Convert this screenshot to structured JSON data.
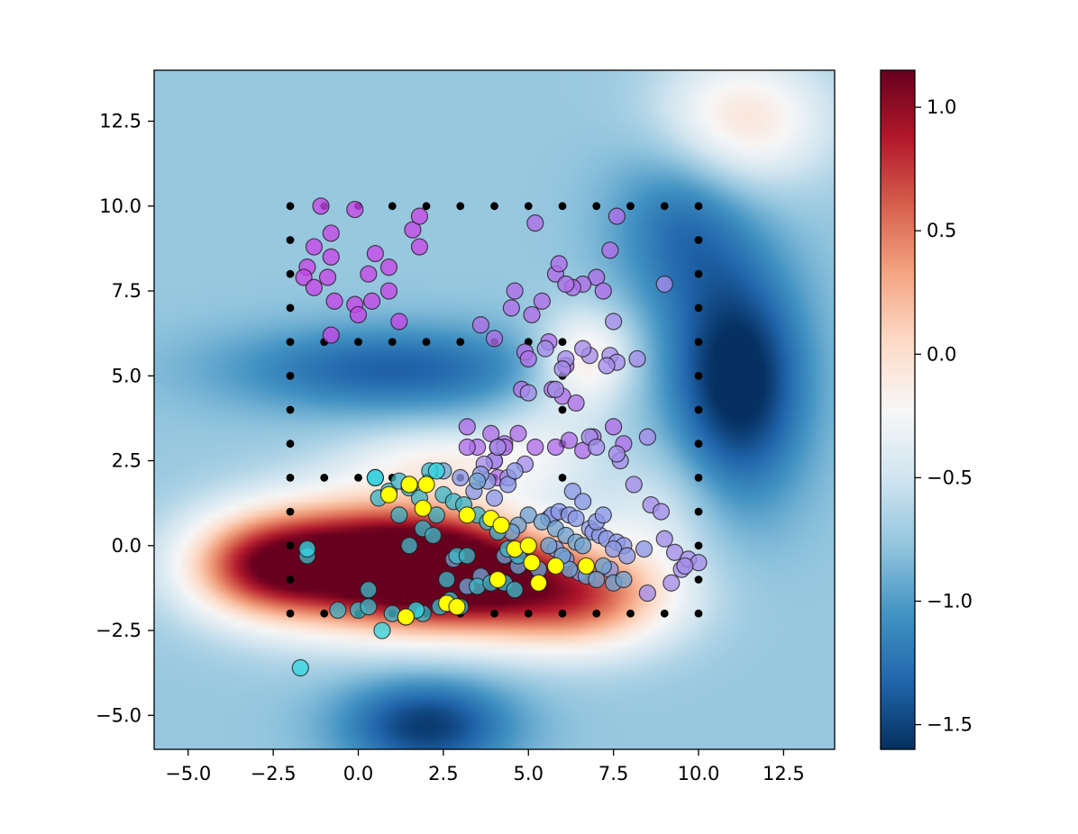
{
  "chart_data": {
    "type": "scatter",
    "title": "",
    "xlabel": "",
    "ylabel": "",
    "xlim": [
      -6,
      14
    ],
    "ylim": [
      -6,
      14
    ],
    "x_ticks": [
      -5.0,
      -2.5,
      0.0,
      2.5,
      5.0,
      7.5,
      10.0,
      12.5
    ],
    "y_ticks": [
      -5.0,
      -2.5,
      0.0,
      2.5,
      5.0,
      7.5,
      10.0,
      12.5
    ],
    "x_tick_labels": [
      "−5.0",
      "−2.5",
      "0.0",
      "2.5",
      "5.0",
      "7.5",
      "10.0",
      "12.5"
    ],
    "y_tick_labels": [
      "−5.0",
      "−2.5",
      "0.0",
      "2.5",
      "5.0",
      "7.5",
      "10.0",
      "12.5"
    ],
    "grid": false,
    "background": {
      "type": "heatmap",
      "colormap": "RdBu_r",
      "vmin": -1.6,
      "vmax": 1.15,
      "base_value": -0.75,
      "bumps": [
        {
          "x": 0.0,
          "y": -0.5,
          "amp": 2.0,
          "sx": 2.6,
          "sy": 1.3
        },
        {
          "x": 3.0,
          "y": -0.8,
          "amp": 1.4,
          "sx": 2.0,
          "sy": 1.2
        },
        {
          "x": 6.5,
          "y": -1.5,
          "amp": 1.3,
          "sx": 2.0,
          "sy": 1.1
        },
        {
          "x": -3.0,
          "y": -0.6,
          "amp": 0.9,
          "sx": 1.5,
          "sy": 1.0
        },
        {
          "x": 2.5,
          "y": 2.5,
          "amp": 0.5,
          "sx": 2.0,
          "sy": 0.7
        },
        {
          "x": 11.2,
          "y": 4.8,
          "amp": -0.95,
          "sx": 1.4,
          "sy": 2.4
        },
        {
          "x": 2.0,
          "y": -5.3,
          "amp": -0.8,
          "sx": 1.8,
          "sy": 1.0
        },
        {
          "x": 1.0,
          "y": 5.2,
          "amp": -0.6,
          "sx": 3.5,
          "sy": 0.9
        },
        {
          "x": 9.5,
          "y": 9.5,
          "amp": -0.5,
          "sx": 1.5,
          "sy": 2.0
        },
        {
          "x": 11.2,
          "y": 12.5,
          "amp": 0.75,
          "sx": 1.8,
          "sy": 1.4
        },
        {
          "x": 6.7,
          "y": 5.5,
          "amp": 0.75,
          "sx": 1.0,
          "sy": 1.0
        },
        {
          "x": 8.8,
          "y": 1.0,
          "amp": 0.3,
          "sx": 1.3,
          "sy": 1.3
        },
        {
          "x": 5.5,
          "y": 3.0,
          "amp": 0.3,
          "sx": 1.2,
          "sy": 1.2
        }
      ]
    },
    "series": [
      {
        "name": "grid-points",
        "color": "#000000",
        "marker": "dot",
        "x": [
          -2,
          -1,
          0,
          1,
          2,
          3,
          4,
          5,
          6,
          7,
          8,
          9,
          10,
          -2,
          -2,
          -2,
          -2,
          -2,
          -2,
          -2,
          -2,
          -2,
          -2,
          -2,
          -2,
          -1,
          0,
          1,
          2,
          3,
          4,
          5,
          6,
          7,
          8,
          9,
          10,
          10,
          10,
          10,
          10,
          10,
          10,
          10,
          10,
          10,
          10,
          10,
          -1,
          0,
          1,
          2,
          3,
          4,
          5,
          6,
          6,
          6,
          6,
          -1,
          0,
          1,
          2,
          3,
          4,
          6,
          6
        ],
        "y": [
          10,
          10,
          10,
          10,
          10,
          10,
          10,
          10,
          10,
          10,
          10,
          10,
          10,
          9,
          8,
          7,
          6,
          5,
          4,
          3,
          2,
          1,
          0,
          -1,
          -2,
          -2,
          -2,
          -2,
          -2,
          -2,
          -2,
          -2,
          -2,
          -2,
          -2,
          -2,
          -2,
          9,
          8,
          7,
          6,
          5,
          4,
          3,
          2,
          1,
          0,
          -1,
          6,
          6,
          6,
          6,
          6,
          6,
          6,
          6,
          5,
          4,
          3,
          2,
          2,
          2,
          2,
          2,
          2,
          2,
          1
        ]
      },
      {
        "name": "magenta-cluster",
        "color": "#c646e8",
        "x": [
          -1.1,
          -0.1,
          -1.3,
          -0.8,
          -1.5,
          0.3,
          -0.9,
          0.5,
          -1.6,
          0.9,
          -0.7,
          0.4,
          -1.3,
          -0.8,
          0.9,
          -0.1,
          0.0,
          1.2,
          1.6,
          1.8,
          -0.8,
          1.8
        ],
        "y": [
          10.0,
          9.9,
          8.8,
          8.5,
          8.2,
          8.0,
          7.9,
          8.6,
          7.9,
          8.2,
          7.2,
          7.2,
          7.6,
          6.2,
          7.5,
          7.1,
          6.8,
          6.6,
          9.3,
          9.7,
          9.2,
          8.8
        ],
        "size": [
          9,
          9,
          9,
          9,
          9,
          9,
          9,
          9,
          9,
          9,
          9,
          9,
          9,
          9,
          9,
          9,
          9,
          9,
          9,
          9,
          9,
          9
        ]
      },
      {
        "name": "violet-cluster",
        "color": "#b06ee8",
        "x": [
          5.2,
          7.6,
          7.4,
          7.0,
          7.2,
          5.8,
          6.6,
          6.3,
          5.9,
          6.1,
          4.6,
          5.4,
          5.1,
          4.5,
          4.0,
          3.6,
          4.9,
          5.6,
          5.0,
          6.1,
          4.8,
          5.7,
          6.0,
          6.4,
          4.1,
          4.3,
          7.5,
          6.9,
          7.8,
          5.8,
          6.2,
          6.6,
          4.7,
          5.2,
          3.2,
          3.9,
          3.5,
          4.3,
          3.2,
          4.0,
          4.1
        ],
        "y": [
          9.5,
          9.7,
          8.7,
          7.9,
          7.5,
          8.0,
          7.7,
          7.6,
          8.3,
          7.7,
          7.5,
          7.2,
          6.8,
          7.0,
          6.1,
          6.5,
          5.7,
          6.0,
          5.5,
          5.3,
          4.6,
          4.6,
          4.4,
          4.2,
          2.9,
          3.0,
          3.5,
          3.2,
          3.0,
          2.9,
          3.1,
          2.8,
          3.3,
          2.9,
          3.5,
          3.3,
          2.9,
          2.9,
          2.9,
          2.5,
          2.0
        ],
        "size": [
          9,
          9,
          9,
          9,
          9,
          9,
          9,
          9,
          9,
          9,
          9,
          9,
          9,
          9,
          9,
          9,
          9,
          9,
          9,
          9,
          9,
          9,
          9,
          9,
          9,
          9,
          9,
          9,
          9,
          9,
          9,
          9,
          9,
          9,
          9,
          9,
          9,
          9,
          9,
          9,
          9
        ]
      },
      {
        "name": "lavender-cluster",
        "color": "#a48de9",
        "x": [
          9.0,
          7.5,
          7.4,
          8.2,
          7.6,
          7.3,
          6.8,
          5.5,
          6.6,
          6.1,
          6.0,
          5.0,
          5.8,
          4.0,
          4.1,
          3.7,
          4.9,
          4.4,
          8.5,
          6.8,
          7.0,
          7.7,
          7.6,
          8.1,
          8.6,
          8.9,
          9.0,
          9.3,
          9.5,
          9.7,
          10.0,
          9.6,
          9.2,
          8.5
        ],
        "y": [
          7.7,
          6.6,
          5.6,
          5.5,
          5.4,
          5.3,
          5.6,
          5.8,
          5.8,
          5.5,
          5.2,
          4.5,
          4.6,
          2.5,
          2.9,
          2.4,
          2.4,
          2.0,
          3.2,
          3.2,
          2.9,
          2.5,
          2.7,
          1.8,
          1.2,
          1.0,
          0.2,
          -0.2,
          -0.7,
          -0.4,
          -0.5,
          -0.6,
          -1.1,
          -1.4
        ],
        "size": [
          9,
          9,
          9,
          9,
          9,
          9,
          9,
          9,
          9,
          9,
          9,
          9,
          9,
          9,
          9,
          9,
          9,
          9,
          9,
          9,
          9,
          9,
          9,
          9,
          9,
          9,
          9,
          9,
          9,
          9,
          9,
          9,
          9,
          9
        ]
      },
      {
        "name": "periwinkle-cluster",
        "color": "#8c98e6",
        "x": [
          5.6,
          5.7,
          5.9,
          6.2,
          6.4,
          6.8,
          6.9,
          7.1,
          7.3,
          7.6,
          7.8,
          6.3,
          6.6,
          7.0,
          7.2,
          7.5,
          7.9,
          8.4,
          6.0,
          5.8,
          6.1,
          6.5,
          7.4,
          4.0,
          3.8,
          3.6,
          3.4,
          3.0,
          4.4,
          4.6
        ],
        "y": [
          0.8,
          0.9,
          1.0,
          0.9,
          0.8,
          0.5,
          0.4,
          0.3,
          0.2,
          0.1,
          0.0,
          1.6,
          1.3,
          0.7,
          0.9,
          -0.1,
          -0.3,
          -0.1,
          -0.5,
          -0.1,
          -0.4,
          -0.8,
          -0.7,
          1.4,
          1.9,
          2.1,
          1.6,
          2.0,
          1.8,
          2.2
        ],
        "size": [
          9,
          9,
          9,
          9,
          9,
          9,
          9,
          9,
          9,
          9,
          9,
          9,
          9,
          9,
          9,
          9,
          9,
          9,
          9,
          9,
          9,
          9,
          9,
          9,
          9,
          9,
          9,
          9,
          9,
          9
        ]
      },
      {
        "name": "steel-cluster",
        "color": "#6fa3d2",
        "x": [
          5.0,
          5.4,
          4.7,
          5.8,
          6.1,
          6.4,
          6.6,
          7.2,
          6.7,
          6.2,
          5.3,
          4.7,
          3.6,
          3.2,
          2.8,
          4.3,
          5.6,
          6.0,
          7.0,
          7.5,
          7.8,
          2.5,
          3.5,
          4.5
        ],
        "y": [
          0.9,
          0.7,
          0.6,
          0.5,
          0.3,
          0.1,
          0.0,
          -0.6,
          -0.9,
          -0.7,
          -0.7,
          -0.6,
          -0.9,
          -1.2,
          -0.4,
          -0.3,
          0.0,
          -0.3,
          -1.0,
          -1.1,
          -1.0,
          2.2,
          1.9,
          0.4
        ],
        "size": [
          9,
          9,
          9,
          9,
          9,
          9,
          9,
          9,
          9,
          9,
          9,
          9,
          9,
          9,
          9,
          9,
          9,
          9,
          9,
          9,
          9,
          9,
          9,
          9
        ]
      },
      {
        "name": "teal-cluster",
        "color": "#3fb6c6",
        "x": [
          0.5,
          0.6,
          0.9,
          1.2,
          1.5,
          1.8,
          2.1,
          2.5,
          2.8,
          3.1,
          3.5,
          3.8,
          4.1,
          4.4,
          4.7,
          2.3,
          1.2,
          1.5,
          1.9,
          2.2,
          2.6,
          2.9,
          3.2,
          3.5,
          3.9,
          4.3,
          4.6,
          0.3,
          1.0,
          1.4,
          1.9,
          2.4,
          2.7,
          3.0,
          -0.6,
          0.0,
          0.3,
          -1.5
        ],
        "y": [
          2.0,
          1.4,
          1.6,
          1.9,
          1.7,
          1.4,
          2.2,
          1.5,
          1.3,
          1.2,
          0.9,
          0.7,
          0.4,
          -0.1,
          -0.3,
          0.9,
          0.9,
          0.0,
          0.5,
          0.3,
          -1.0,
          -0.3,
          -0.3,
          -1.2,
          -1.1,
          -1.1,
          -1.3,
          -1.3,
          -2.0,
          -2.1,
          -2.0,
          -1.8,
          -1.6,
          -1.8,
          -1.9,
          -1.9,
          -1.8,
          -0.3
        ],
        "size": [
          9,
          9,
          9,
          9,
          9,
          9,
          9,
          9,
          9,
          9,
          9,
          9,
          9,
          9,
          9,
          9,
          9,
          9,
          9,
          9,
          9,
          9,
          9,
          9,
          9,
          9,
          9,
          9,
          9,
          9,
          9,
          9,
          9,
          9,
          9,
          9,
          9,
          9
        ]
      },
      {
        "name": "cyan-cluster",
        "color": "#36d6e2",
        "x": [
          0.5,
          -1.7,
          0.7,
          1.7,
          1.5,
          -1.5,
          2.3
        ],
        "y": [
          2.0,
          -3.6,
          -2.5,
          -1.9,
          1.8,
          -0.1,
          2.2
        ],
        "size": [
          9,
          9,
          9,
          9,
          9,
          9,
          9
        ]
      },
      {
        "name": "yellow-points",
        "color": "#ffff00",
        "x": [
          0.9,
          1.5,
          2.0,
          1.9,
          3.2,
          3.9,
          4.2,
          4.6,
          5.0,
          5.1,
          5.3,
          5.8,
          6.7,
          4.1,
          2.6,
          2.9,
          1.4
        ],
        "y": [
          1.5,
          1.8,
          1.8,
          1.1,
          0.9,
          0.8,
          0.6,
          -0.1,
          0.0,
          -0.5,
          -1.1,
          -0.6,
          -0.6,
          -1.0,
          -1.7,
          -1.8,
          -2.1
        ],
        "size": [
          9,
          9,
          9,
          9,
          9,
          9,
          9,
          9,
          9,
          9,
          9,
          9,
          9,
          9,
          9,
          9,
          9
        ]
      }
    ],
    "colorbar": {
      "ticks": [
        1.0,
        0.5,
        0.0,
        -0.5,
        -1.0,
        -1.5
      ],
      "tick_labels": [
        "1.0",
        "0.5",
        "0.0",
        "−0.5",
        "−1.0",
        "−1.5"
      ]
    }
  }
}
